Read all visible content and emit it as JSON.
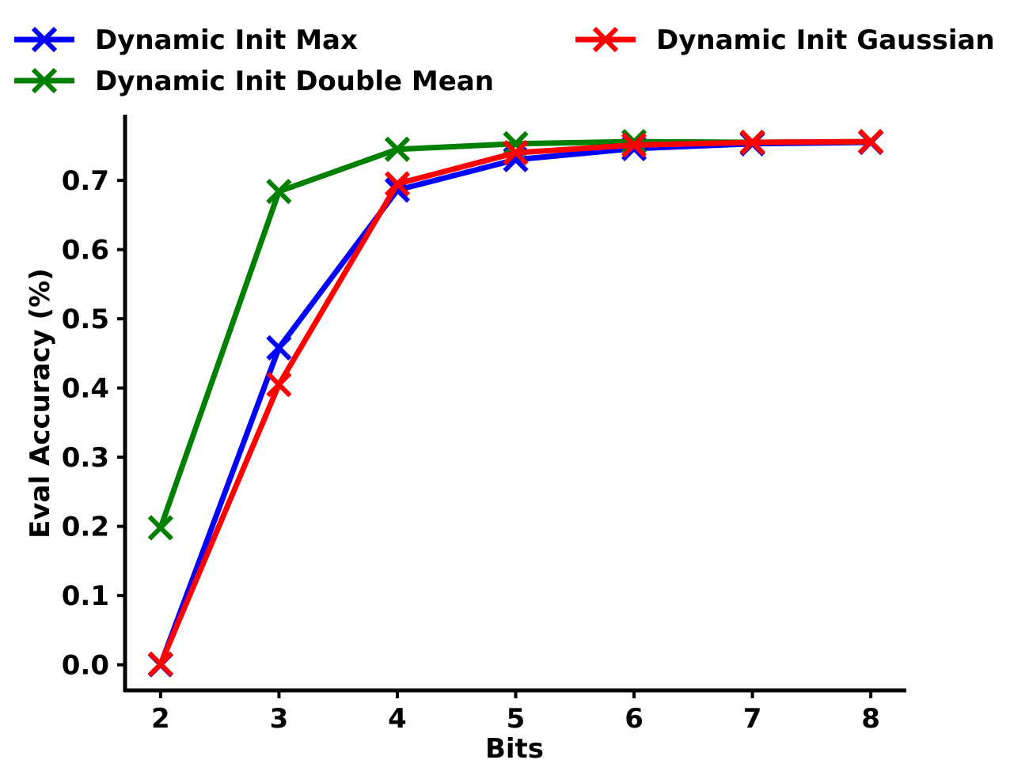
{
  "chart_data": {
    "type": "line",
    "x": [
      2,
      3,
      4,
      5,
      6,
      7,
      8
    ],
    "xlabel": "Bits",
    "ylabel": "Eval Accuracy (%)",
    "xlim": [
      1.7,
      8.3
    ],
    "ylim": [
      -0.037,
      0.795
    ],
    "xticks": [
      "2",
      "3",
      "4",
      "5",
      "6",
      "7",
      "8"
    ],
    "yticks": [
      "0.0",
      "0.1",
      "0.2",
      "0.3",
      "0.4",
      "0.5",
      "0.6",
      "0.7"
    ],
    "grid": false,
    "legend_placement": "top",
    "marker": "x",
    "series": [
      {
        "name": "Dynamic Init Max",
        "color": "#0000ff",
        "values": [
          0.0,
          0.458,
          0.686,
          0.73,
          0.746,
          0.753,
          0.755
        ]
      },
      {
        "name": "Dynamic Init Double Mean",
        "color": "#008000",
        "values": [
          0.198,
          0.684,
          0.745,
          0.753,
          0.756,
          0.755,
          0.756
        ]
      },
      {
        "name": "Dynamic Init Gaussian",
        "color": "#ff0000",
        "values": [
          0.001,
          0.405,
          0.695,
          0.74,
          0.751,
          0.755,
          0.756
        ]
      }
    ]
  }
}
